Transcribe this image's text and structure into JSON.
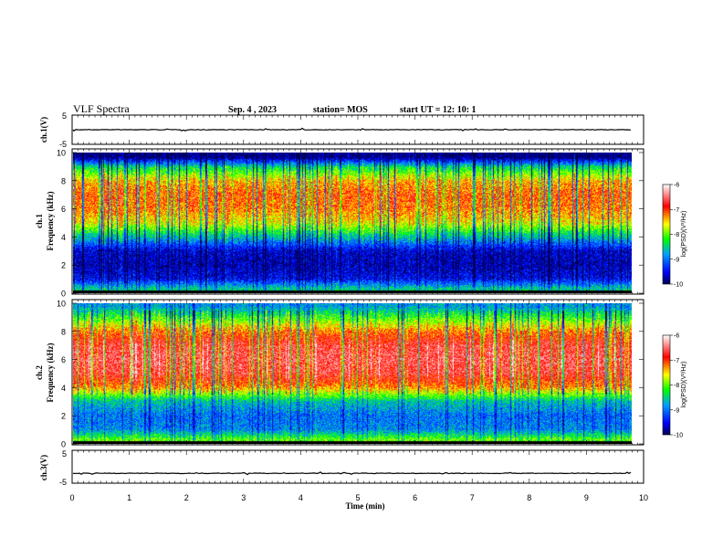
{
  "header": {
    "title": "VLF Spectra",
    "date": "Sep. 4  , 2023",
    "station": "station= MOS",
    "start": "start  UT =   12: 10: 1"
  },
  "chart_data": [
    {
      "type": "line",
      "name": "ch1-waveform",
      "ylabel": "ch.1(V)",
      "ylim": [
        -5,
        5
      ],
      "yticks": [
        "5",
        "-5"
      ],
      "xlim": [
        0,
        10
      ],
      "level": 0
    },
    {
      "type": "heatmap",
      "name": "ch1-spectrogram",
      "ylabel": "ch.1\nFrequency (kHz)",
      "ylim": [
        0,
        10
      ],
      "yticks": [
        "0",
        "2",
        "4",
        "6",
        "8",
        "10"
      ],
      "xlim": [
        0,
        9.8
      ],
      "colorbar": {
        "label": "log(PSD)(V²/Hz)",
        "range": [
          -10,
          -6
        ],
        "ticks": [
          "-6",
          "-7",
          "-8",
          "-9",
          "-10"
        ]
      },
      "band_profile": [
        {
          "f": 0.3,
          "v": -8.5
        },
        {
          "f": 1.0,
          "v": -9.5
        },
        {
          "f": 2.0,
          "v": -9.7
        },
        {
          "f": 3.0,
          "v": -9.6
        },
        {
          "f": 4.0,
          "v": -8.6
        },
        {
          "f": 5.0,
          "v": -7.6
        },
        {
          "f": 6.0,
          "v": -7.2
        },
        {
          "f": 7.0,
          "v": -7.1
        },
        {
          "f": 8.0,
          "v": -7.4
        },
        {
          "f": 9.0,
          "v": -8.4
        },
        {
          "f": 9.7,
          "v": -9.9
        }
      ]
    },
    {
      "type": "heatmap",
      "name": "ch2-spectrogram",
      "ylabel": "ch.2\nFrequency (kHz)",
      "ylim": [
        0,
        10
      ],
      "yticks": [
        "0",
        "2",
        "4",
        "6",
        "8",
        "10"
      ],
      "xlim": [
        0,
        9.8
      ],
      "colorbar": {
        "label": "log(PSD)(V²/Hz)",
        "range": [
          -10,
          -6
        ],
        "ticks": [
          "-6",
          "-7",
          "-8",
          "-9",
          "-10"
        ]
      },
      "band_profile": [
        {
          "f": 0.3,
          "v": -8.0
        },
        {
          "f": 1.0,
          "v": -8.9
        },
        {
          "f": 2.0,
          "v": -9.0
        },
        {
          "f": 3.0,
          "v": -8.6
        },
        {
          "f": 4.0,
          "v": -7.3
        },
        {
          "f": 5.0,
          "v": -6.7
        },
        {
          "f": 6.0,
          "v": -6.6
        },
        {
          "f": 7.0,
          "v": -6.7
        },
        {
          "f": 8.0,
          "v": -7.2
        },
        {
          "f": 9.0,
          "v": -8.1
        },
        {
          "f": 9.8,
          "v": -8.8
        }
      ]
    },
    {
      "type": "line",
      "name": "ch3-waveform",
      "ylabel": "ch.3(V)",
      "ylim": [
        -5,
        5
      ],
      "yticks": [
        "5",
        "-5"
      ],
      "xlim": [
        0,
        10
      ],
      "level": -2
    }
  ],
  "xaxis": {
    "label": "Time (min)",
    "ticks": [
      "0",
      "1",
      "2",
      "3",
      "4",
      "5",
      "6",
      "7",
      "8",
      "9",
      "10"
    ]
  },
  "colors": {
    "scale": [
      "#000050",
      "#0000ff",
      "#00a0ff",
      "#00ff00",
      "#ffff00",
      "#ff0000",
      "#ffffff"
    ]
  }
}
